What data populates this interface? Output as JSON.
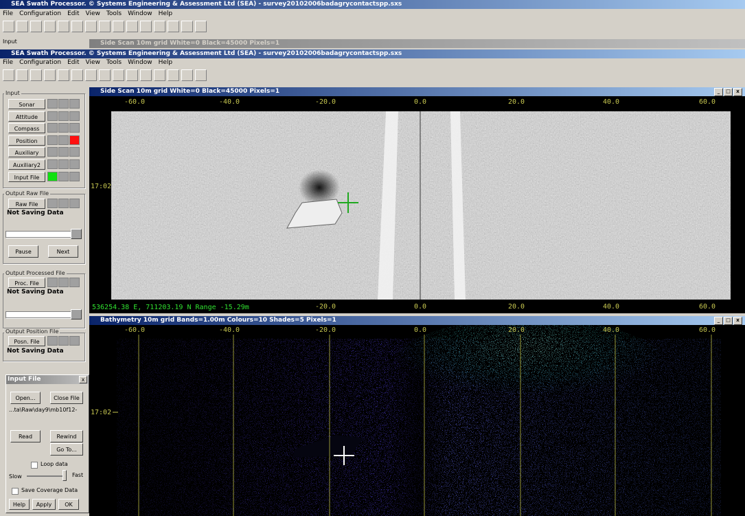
{
  "outer_window": {
    "title": "SEA Swath Processor. © Systems Engineering & Assessment Ltd (SEA) - survey20102006badagrycontactspp.sxs",
    "menu": [
      "File",
      "Configuration",
      "Edit",
      "View",
      "Tools",
      "Window",
      "Help"
    ]
  },
  "background": {
    "label": "Input",
    "child_title": "Side Scan 10m grid White=0 Black=45000 Pixels=1"
  },
  "inner_window": {
    "title": "SEA Swath Processor. © Systems Engineering & Assessment Ltd (SEA) - survey20102006badagrycontactspp.sxs",
    "menu": [
      "File",
      "Configuration",
      "Edit",
      "View",
      "Tools",
      "Window",
      "Help"
    ]
  },
  "left_panel": {
    "input_group": "Input",
    "input_buttons": [
      "Sonar",
      "Attitude",
      "Compass",
      "Position",
      "Auxiliary",
      "Auxiliary2",
      "Input File"
    ],
    "raw_group": "Output Raw File",
    "raw_button": "Raw File",
    "raw_status": "Not Saving Data",
    "pause": "Pause",
    "next": "Next",
    "proc_group": "Output Processed File",
    "proc_button": "Proc. File",
    "proc_status": "Not Saving Data",
    "pos_group": "Output Position File",
    "pos_button": "Posn. File",
    "pos_status": "Not Saving Data"
  },
  "input_file_dialog": {
    "title": "Input File",
    "open": "Open...",
    "close": "Close File",
    "path": "...ta\\Raw\\day9\\mb10f12-",
    "read": "Read",
    "rewind": "Rewind",
    "goto": "Go To...",
    "loop": "Loop data",
    "slow": "Slow",
    "fast": "Fast",
    "save_coverage": "Save Coverage Data",
    "help": "Help",
    "apply": "Apply",
    "ok": "OK"
  },
  "side_scan": {
    "title": "Side Scan 10m grid White=0 Black=45000 Pixels=1",
    "x_labels": [
      "-60.0",
      "-40.0",
      "-20.0",
      "0.0",
      "20.0",
      "40.0",
      "60.0"
    ],
    "time_label": "17:02",
    "status": "536254.38 E, 711203.19 N Range -15.29m"
  },
  "bathymetry": {
    "title": "Bathymetry 10m grid Bands=1.00m Colours=10 Shades=5 Pixels=1",
    "x_labels": [
      "-60.0",
      "-40.0",
      "-20.0",
      "0.0",
      "20.0",
      "40.0",
      "60.0"
    ],
    "time_label": "17:02"
  }
}
